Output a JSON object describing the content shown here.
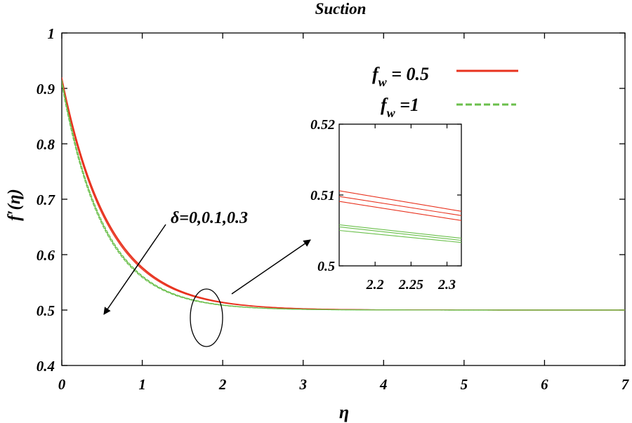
{
  "chart_data": {
    "type": "line",
    "title": "Suction",
    "xlabel": "η",
    "ylabel": "f′(η)",
    "xlim": [
      0,
      7
    ],
    "ylim": [
      0.4,
      1
    ],
    "xticks": [
      0,
      1,
      2,
      3,
      4,
      5,
      6,
      7
    ],
    "xtick_labels": [
      "0",
      "1",
      "2",
      "3",
      "4",
      "5",
      "6",
      "7"
    ],
    "yticks": [
      0.4,
      0.5,
      0.6,
      0.7,
      0.8,
      0.9,
      1
    ],
    "ytick_labels": [
      "0.4",
      "0.5",
      "0.6",
      "0.7",
      "0.8",
      "0.9",
      "1"
    ],
    "model": {
      "form": "f'(eta) = 0.5 + a * exp(-k * eta)",
      "inf_value": 0.5
    },
    "series": [
      {
        "name": "f_w = 0.5, δ = 0",
        "color": "#e8321e",
        "style": "solid",
        "a": 0.42,
        "k": 1.69
      },
      {
        "name": "f_w = 0.5, δ = 0.1",
        "color": "#e8321e",
        "style": "solid",
        "a": 0.416,
        "k": 1.705
      },
      {
        "name": "f_w = 0.5, δ = 0.3",
        "color": "#e8321e",
        "style": "solid",
        "a": 0.412,
        "k": 1.725
      },
      {
        "name": "f_w = 1, δ = 0",
        "color": "#6abf4b",
        "style": "dashed",
        "a": 0.415,
        "k": 1.905
      },
      {
        "name": "f_w = 1, δ = 0.1",
        "color": "#6abf4b",
        "style": "dashed",
        "a": 0.411,
        "k": 1.918
      },
      {
        "name": "f_w = 1, δ = 0.3",
        "color": "#6abf4b",
        "style": "dashed",
        "a": 0.407,
        "k": 1.935
      }
    ],
    "legend": {
      "placement": "top-right",
      "entries": [
        {
          "prefix": "f",
          "sub": "w",
          "suffix": " = 0.5",
          "color": "#e8321e",
          "style": "solid"
        },
        {
          "prefix": "f",
          "sub": "w",
          "suffix": " =1",
          "color": "#6abf4b",
          "style": "dashed"
        }
      ]
    },
    "annotations": {
      "delta_label": "δ=0,0.1,0.3",
      "ellipse_center": [
        1.85,
        0.485
      ]
    },
    "inset": {
      "xlim": [
        2.15,
        2.32
      ],
      "ylim": [
        0.5,
        0.52
      ],
      "xticks": [
        2.2,
        2.25,
        2.3
      ],
      "xtick_labels": [
        "2.2",
        "2.25",
        "2.3"
      ],
      "yticks": [
        0.5,
        0.51,
        0.52
      ],
      "ytick_labels": [
        "0.5",
        "0.51",
        "0.52"
      ],
      "series": [
        {
          "color": "#e8321e",
          "y_start": 0.5106,
          "y_end": 0.5077
        },
        {
          "color": "#e8321e",
          "y_start": 0.5098,
          "y_end": 0.5071
        },
        {
          "color": "#e8321e",
          "y_start": 0.5091,
          "y_end": 0.5064
        },
        {
          "color": "#6abf4b",
          "y_start": 0.5058,
          "y_end": 0.5039
        },
        {
          "color": "#6abf4b",
          "y_start": 0.5055,
          "y_end": 0.5036
        },
        {
          "color": "#6abf4b",
          "y_start": 0.505,
          "y_end": 0.5033
        }
      ]
    }
  }
}
